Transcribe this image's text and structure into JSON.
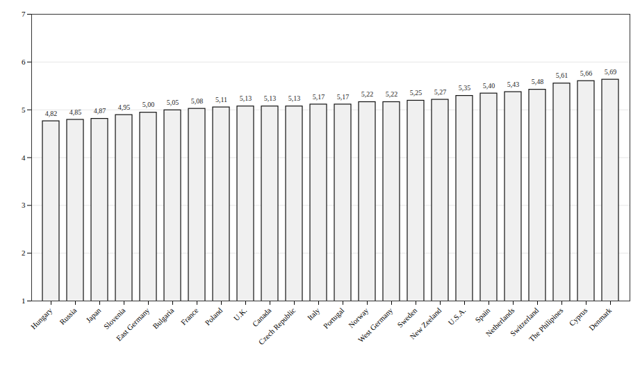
{
  "chart_data": {
    "type": "bar",
    "categories": [
      "Hungary",
      "Russia",
      "Japan",
      "Slovenia",
      "East Germany",
      "Bulgaria",
      "France",
      "Poland",
      "U.K.",
      "Canada",
      "Czech Republic",
      "Italy",
      "Portugal",
      "Norway",
      "West Germany",
      "Sweden",
      "New Zeeland",
      "U.S.A.",
      "Spain",
      "Netherlands",
      "Switzerland",
      "The Philipines",
      "Cyprus",
      "Denmark"
    ],
    "values": [
      4.82,
      4.85,
      4.87,
      4.95,
      5.0,
      5.05,
      5.08,
      5.11,
      5.13,
      5.13,
      5.13,
      5.17,
      5.17,
      5.22,
      5.22,
      5.25,
      5.27,
      5.35,
      5.4,
      5.43,
      5.48,
      5.61,
      5.66,
      5.69
    ],
    "value_labels": [
      "4,82",
      "4,85",
      "4,87",
      "4,95",
      "5,00",
      "5,05",
      "5,08",
      "5,11",
      "5,13",
      "5,13",
      "5,13",
      "5,17",
      "5,17",
      "5,22",
      "5,22",
      "5,25",
      "5,27",
      "5,35",
      "5,40",
      "5,43",
      "5,48",
      "5,61",
      "5,66",
      "5,69"
    ],
    "data_labels": true,
    "color": "#f0f0f0",
    "ylim": [
      1,
      7
    ],
    "yticks": [
      1,
      2,
      3,
      4,
      5,
      6,
      7
    ],
    "grid": true
  }
}
